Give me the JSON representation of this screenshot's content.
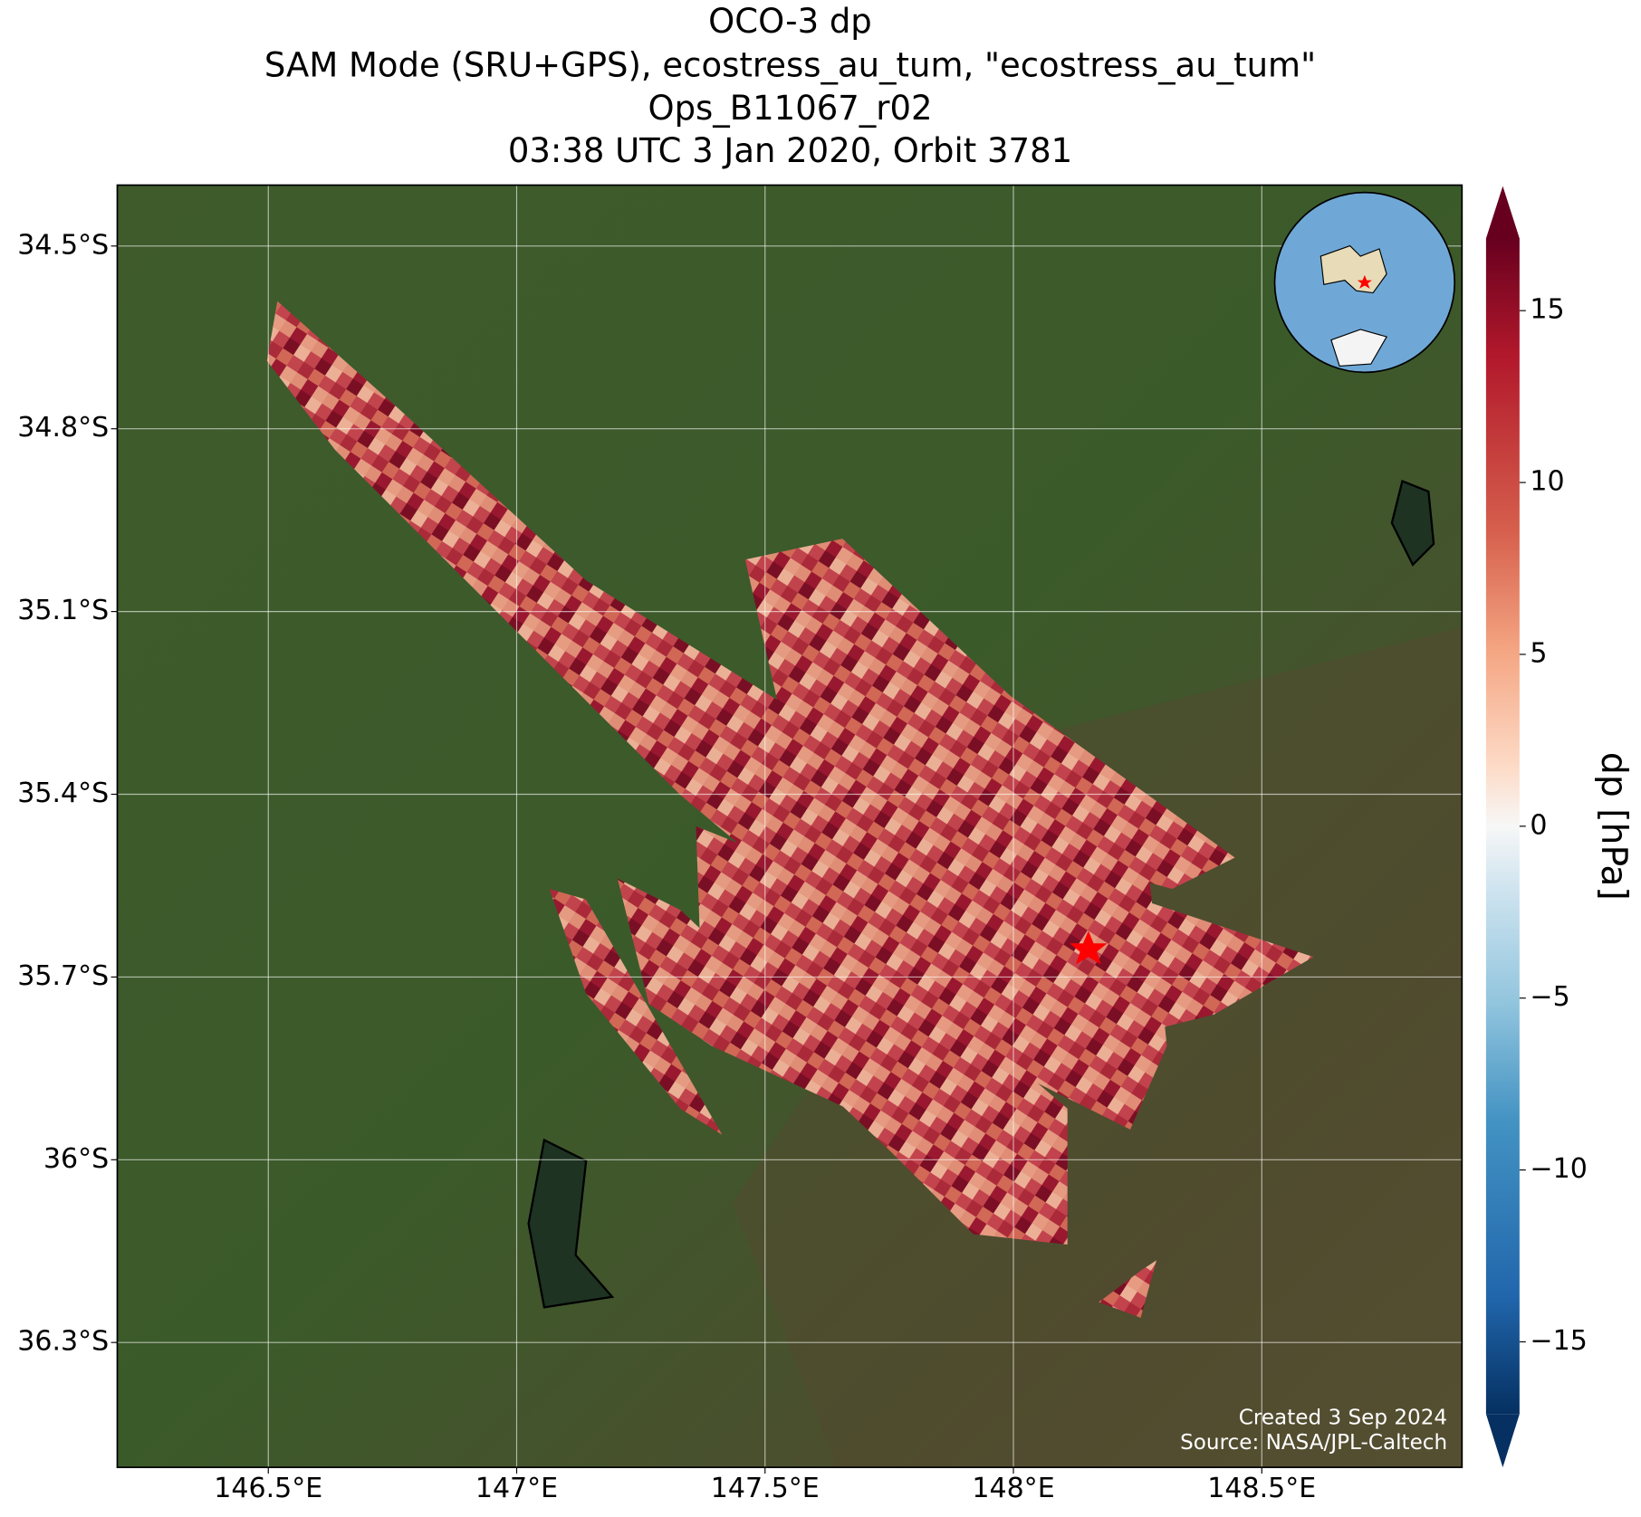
{
  "title": [
    "OCO-3 dp",
    "SAM Mode (SRU+GPS), ecostress_au_tum, \"ecostress_au_tum\"",
    "Ops_B11067_r02",
    "03:38 UTC 3 Jan 2020, Orbit 3781"
  ],
  "map": {
    "xlim": [
      146.196,
      148.903
    ],
    "ylim": [
      -34.4,
      -36.505
    ],
    "xticks": [
      {
        "value": 146.5,
        "label": "146.5°E"
      },
      {
        "value": 147,
        "label": "147°E"
      },
      {
        "value": 147.5,
        "label": "147.5°E"
      },
      {
        "value": 148,
        "label": "148°E"
      },
      {
        "value": 148.5,
        "label": "148.5°E"
      }
    ],
    "yticks": [
      {
        "value": -34.5,
        "label": "34.5°S"
      },
      {
        "value": -34.8,
        "label": "34.8°S"
      },
      {
        "value": -35.1,
        "label": "35.1°S"
      },
      {
        "value": -35.4,
        "label": "35.4°S"
      },
      {
        "value": -35.7,
        "label": "35.7°S"
      },
      {
        "value": -36,
        "label": "36°S"
      },
      {
        "value": -36.3,
        "label": "36.3°S"
      }
    ]
  },
  "colorbar": {
    "label": "dp [hPa]",
    "lim": [
      -17.1,
      17.1
    ],
    "ticks": [
      {
        "value": -15,
        "label": "−15"
      },
      {
        "value": -10,
        "label": "−10"
      },
      {
        "value": -5,
        "label": "−5"
      },
      0,
      5,
      10,
      15
    ]
  },
  "credits": [
    "Created 3 Sep 2024",
    "Source: NASA/JPL-Caltech"
  ]
}
